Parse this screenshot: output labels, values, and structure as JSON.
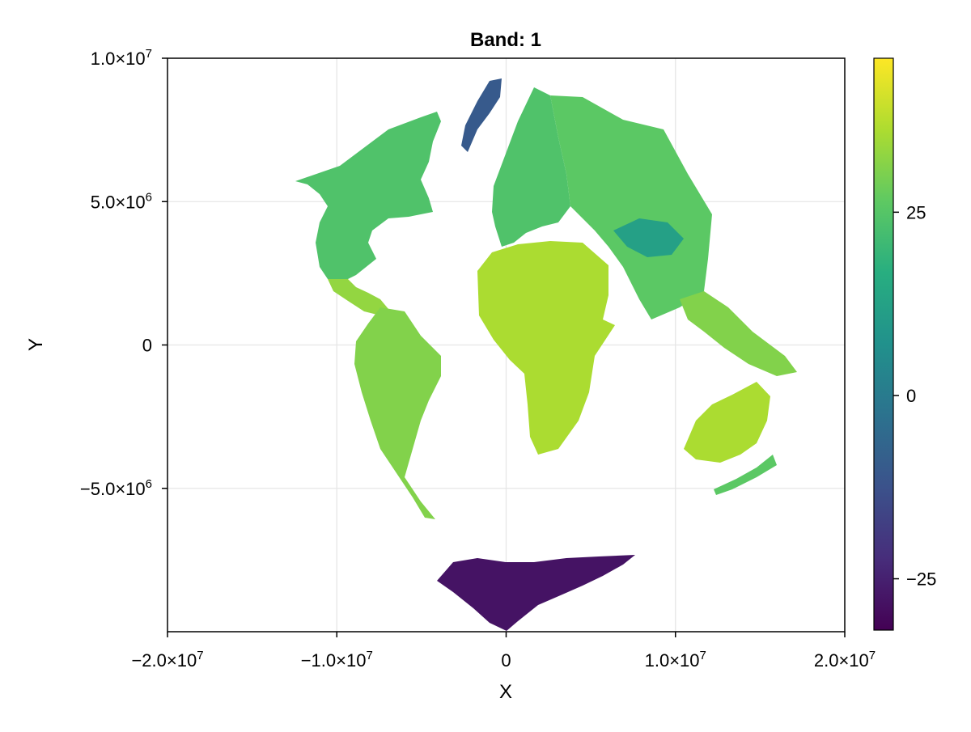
{
  "chart_data": {
    "type": "heatmap",
    "title": "Band: 1",
    "xlabel": "X",
    "ylabel": "Y",
    "xlim": [
      -20000000,
      20000000
    ],
    "ylim": [
      -10000000,
      10000000
    ],
    "grid": true,
    "x_ticks": [
      {
        "value": -20000000,
        "mant": "−2.0×10",
        "exp": "7"
      },
      {
        "value": -10000000,
        "mant": "−1.0×10",
        "exp": "7"
      },
      {
        "value": 0,
        "mant": "0",
        "exp": ""
      },
      {
        "value": 10000000,
        "mant": "1.0×10",
        "exp": "7"
      },
      {
        "value": 20000000,
        "mant": "2.0×10",
        "exp": "7"
      }
    ],
    "y_ticks": [
      {
        "value": 10000000,
        "mant": "1.0×10",
        "exp": "7"
      },
      {
        "value": 5000000,
        "mant": "5.0×10",
        "exp": "6"
      },
      {
        "value": 0,
        "mant": "0",
        "exp": ""
      },
      {
        "value": -5000000,
        "mant": "−5.0×10",
        "exp": "6"
      }
    ],
    "colorbar": {
      "colormap": "viridis",
      "range": [
        -32,
        46
      ],
      "ticks": [
        {
          "value": 25,
          "label": "25"
        },
        {
          "value": 0,
          "label": "0"
        },
        {
          "value": -25,
          "label": "−25"
        }
      ]
    },
    "regions": [
      {
        "name": "North America",
        "value": 24
      },
      {
        "name": "Greenland",
        "value": -10
      },
      {
        "name": "Central America",
        "value": 33
      },
      {
        "name": "South America",
        "value": 31
      },
      {
        "name": "Europe",
        "value": 24
      },
      {
        "name": "Africa",
        "value": 36
      },
      {
        "name": "Asia",
        "value": 26
      },
      {
        "name": "Tibetan Plateau",
        "value": 12
      },
      {
        "name": "Southeast Asia",
        "value": 31
      },
      {
        "name": "Australia",
        "value": 36
      },
      {
        "name": "New Zealand",
        "value": 26
      },
      {
        "name": "Antarctica",
        "value": -28
      }
    ]
  }
}
